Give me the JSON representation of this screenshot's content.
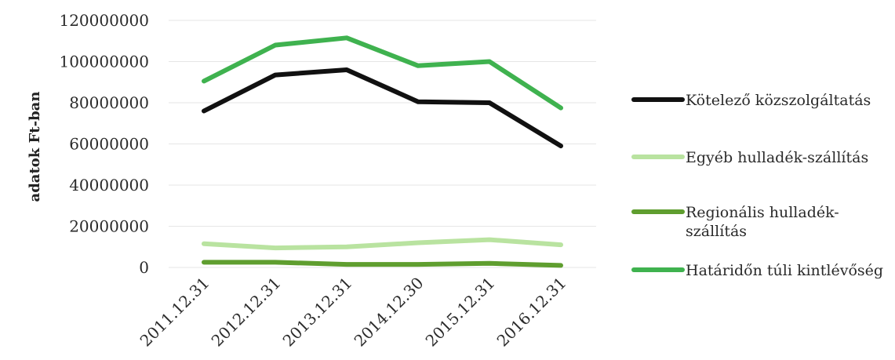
{
  "chart_data": {
    "type": "line",
    "categories": [
      "2011.12.31",
      "2012.12.31",
      "2013.12.31",
      "2014.12.30",
      "2015.12.31",
      "2016.12.31"
    ],
    "ylabel": "adatok Ft-ban",
    "xlabel": "",
    "title": "",
    "ylim": [
      0,
      120000000
    ],
    "yticks": [
      0,
      20000000,
      40000000,
      60000000,
      80000000,
      100000000,
      120000000
    ],
    "grid": true,
    "legend_position": "right",
    "series": [
      {
        "name": "Kötelező közszolgáltatás",
        "color": "#111111",
        "values": [
          76000000,
          93500000,
          96000000,
          80500000,
          80000000,
          59000000
        ]
      },
      {
        "name": "Egyéb hulladék-szállítás",
        "color": "#b9e3a0",
        "values": [
          11500000,
          9500000,
          10000000,
          12000000,
          13500000,
          11000000
        ]
      },
      {
        "name": "Regionális hulladék-szállítás",
        "color": "#5f9e2f",
        "values": [
          2500000,
          2500000,
          1500000,
          1500000,
          2000000,
          1000000
        ]
      },
      {
        "name": "Határidőn túli kintlévőség",
        "color": "#3fb24f",
        "values": [
          90500000,
          108000000,
          111500000,
          98000000,
          100000000,
          77500000
        ]
      }
    ]
  }
}
